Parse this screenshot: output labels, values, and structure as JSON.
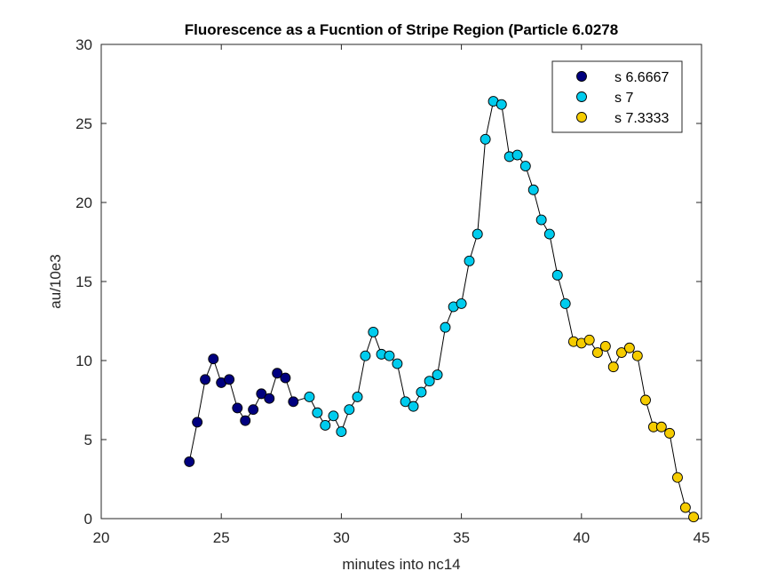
{
  "chart_data": {
    "type": "scatter",
    "title": "Fluorescence as a Fucntion of Stripe Region (Particle 6.0278",
    "xlabel": "minutes into nc14",
    "ylabel": "au/10e3",
    "xlim": [
      20,
      45
    ],
    "ylim": [
      0,
      30
    ],
    "xticks": [
      20,
      25,
      30,
      35,
      40,
      45
    ],
    "yticks": [
      0,
      5,
      10,
      15,
      20,
      25,
      30
    ],
    "xtick_labels": [
      "20",
      "25",
      "30",
      "35",
      "40",
      "45"
    ],
    "ytick_labels": [
      "0",
      "5",
      "10",
      "15",
      "20",
      "25",
      "30"
    ],
    "grid": false,
    "legend_position": "top-right",
    "connecting_line": true,
    "series": [
      {
        "name": "s 6.6667",
        "color": "#00007f",
        "x": [
          23.67,
          24.0,
          24.33,
          24.67,
          25.0,
          25.33,
          25.67,
          26.0,
          26.33,
          26.67,
          27.0,
          27.33,
          27.67,
          28.0
        ],
        "y": [
          3.6,
          6.1,
          8.8,
          10.1,
          8.6,
          8.8,
          7.0,
          6.2,
          6.9,
          7.9,
          7.6,
          9.2,
          8.9,
          7.4
        ]
      },
      {
        "name": "s 7",
        "color": "#00ccee",
        "x": [
          28.67,
          29.0,
          29.33,
          29.67,
          30.0,
          30.33,
          30.67,
          31.0,
          31.33,
          31.67,
          32.0,
          32.33,
          32.67,
          33.0,
          33.33,
          33.67,
          34.0,
          34.33,
          34.67,
          35.0,
          35.33,
          35.67,
          36.0,
          36.33,
          36.67,
          37.0,
          37.33,
          37.67,
          38.0,
          38.33,
          38.67,
          39.0,
          39.33
        ],
        "y": [
          7.7,
          6.7,
          5.9,
          6.5,
          5.5,
          6.9,
          7.7,
          10.3,
          11.8,
          10.4,
          10.3,
          9.8,
          7.4,
          7.1,
          8.0,
          8.7,
          9.1,
          12.1,
          13.4,
          13.6,
          16.3,
          18.0,
          24.0,
          26.4,
          26.2,
          22.9,
          23.0,
          22.3,
          20.8,
          18.9,
          18.0,
          15.4,
          13.6
        ]
      },
      {
        "name": "s 7.3333",
        "color": "#f5cc00",
        "x": [
          39.67,
          40.0,
          40.33,
          40.67,
          41.0,
          41.33,
          41.67,
          42.0,
          42.33,
          42.67,
          43.0,
          43.33,
          43.67,
          44.0,
          44.33,
          44.67
        ],
        "y": [
          11.2,
          11.1,
          11.3,
          10.5,
          10.9,
          9.6,
          10.5,
          10.8,
          10.3,
          7.5,
          5.8,
          5.8,
          5.4,
          2.6,
          0.7,
          0.1
        ]
      }
    ]
  }
}
